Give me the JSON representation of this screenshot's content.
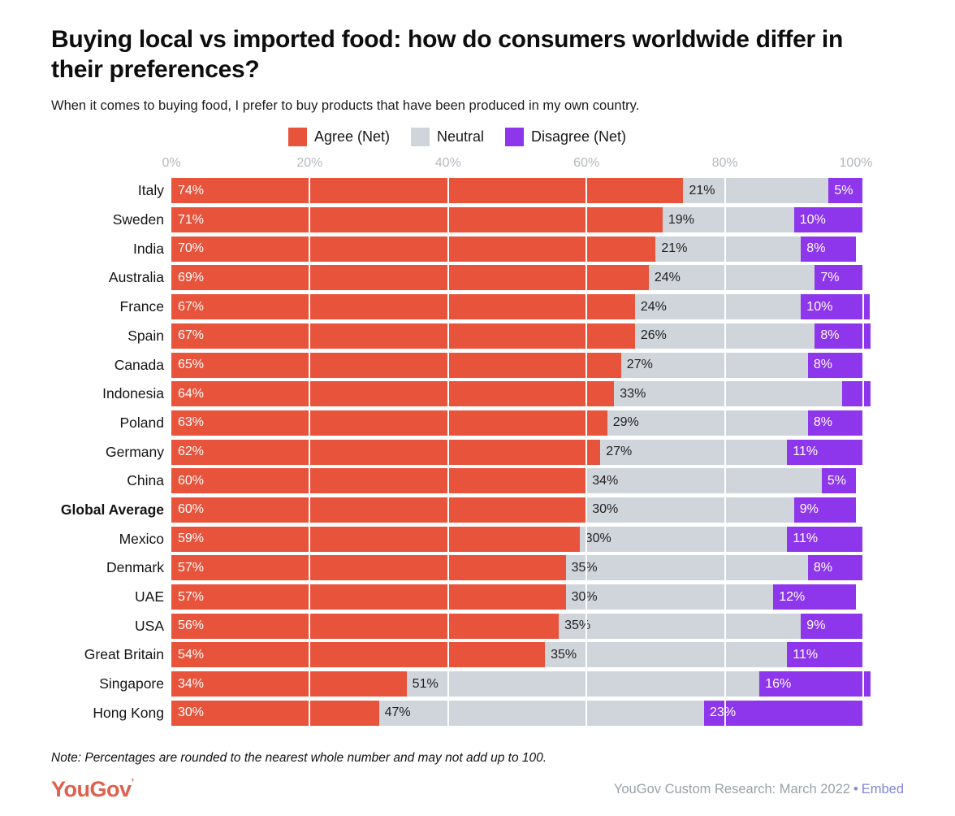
{
  "header": {
    "title": "Buying local vs imported food: how do consumers worldwide differ in their preferences?",
    "subtitle": "When it comes to buying food, I prefer to buy products that have been produced in my own country."
  },
  "chart_data": {
    "type": "bar",
    "orientation": "horizontal",
    "stacked": true,
    "title": "Buying local vs imported food: how do consumers worldwide differ in their preferences?",
    "subtitle": "When it comes to buying food, I prefer to buy products that have been produced in my own country.",
    "legend_position": "top-center",
    "grid": true,
    "x_axis": {
      "ticks": [
        "0%",
        "20%",
        "40%",
        "60%",
        "80%",
        "100%"
      ],
      "tick_values": [
        0,
        20,
        40,
        60,
        80,
        100
      ],
      "range": [
        0,
        100
      ]
    },
    "legend": [
      {
        "label": "Agree (Net)",
        "color": "#e7533b"
      },
      {
        "label": "Neutral",
        "color": "#d0d5db"
      },
      {
        "label": "Disagree (Net)",
        "color": "#8d36eb"
      }
    ],
    "categories": [
      "Italy",
      "Sweden",
      "India",
      "Australia",
      "France",
      "Spain",
      "Canada",
      "Indonesia",
      "Poland",
      "Germany",
      "China",
      "Global Average",
      "Mexico",
      "Denmark",
      "UAE",
      "USA",
      "Great Britain",
      "Singapore",
      "Hong Kong"
    ],
    "series": [
      {
        "name": "Agree (Net)",
        "values": [
          74,
          71,
          70,
          69,
          67,
          67,
          65,
          64,
          63,
          62,
          60,
          60,
          59,
          57,
          57,
          56,
          54,
          34,
          30
        ]
      },
      {
        "name": "Neutral",
        "values": [
          21,
          19,
          21,
          24,
          24,
          26,
          27,
          33,
          29,
          27,
          34,
          30,
          30,
          35,
          30,
          35,
          35,
          51,
          47
        ]
      },
      {
        "name": "Disagree (Net)",
        "values": [
          5,
          10,
          8,
          7,
          10,
          8,
          8,
          4,
          8,
          11,
          5,
          9,
          11,
          8,
          12,
          9,
          11,
          16,
          23
        ]
      }
    ],
    "rows": [
      {
        "name": "Italy",
        "bold": false,
        "agree": 74,
        "neutral": 21,
        "disagree": 5,
        "labels": [
          "74%",
          "21%",
          "5%"
        ]
      },
      {
        "name": "Sweden",
        "bold": false,
        "agree": 71,
        "neutral": 19,
        "disagree": 10,
        "labels": [
          "71%",
          "19%",
          "10%"
        ]
      },
      {
        "name": "India",
        "bold": false,
        "agree": 70,
        "neutral": 21,
        "disagree": 8,
        "labels": [
          "70%",
          "21%",
          "8%"
        ]
      },
      {
        "name": "Australia",
        "bold": false,
        "agree": 69,
        "neutral": 24,
        "disagree": 7,
        "labels": [
          "69%",
          "24%",
          "7%"
        ]
      },
      {
        "name": "France",
        "bold": false,
        "agree": 67,
        "neutral": 24,
        "disagree": 10,
        "labels": [
          "67%",
          "24%",
          "10%"
        ]
      },
      {
        "name": "Spain",
        "bold": false,
        "agree": 67,
        "neutral": 26,
        "disagree": 8,
        "labels": [
          "67%",
          "26%",
          "8%"
        ]
      },
      {
        "name": "Canada",
        "bold": false,
        "agree": 65,
        "neutral": 27,
        "disagree": 8,
        "labels": [
          "65%",
          "27%",
          "8%"
        ]
      },
      {
        "name": "Indonesia",
        "bold": false,
        "agree": 64,
        "neutral": 33,
        "disagree": 4,
        "labels": [
          "64%",
          "33%",
          ""
        ]
      },
      {
        "name": "Poland",
        "bold": false,
        "agree": 63,
        "neutral": 29,
        "disagree": 8,
        "labels": [
          "63%",
          "29%",
          "8%"
        ]
      },
      {
        "name": "Germany",
        "bold": false,
        "agree": 62,
        "neutral": 27,
        "disagree": 11,
        "labels": [
          "62%",
          "27%",
          "11%"
        ]
      },
      {
        "name": "China",
        "bold": false,
        "agree": 60,
        "neutral": 34,
        "disagree": 5,
        "labels": [
          "60%",
          "34%",
          "5%"
        ]
      },
      {
        "name": "Global Average",
        "bold": true,
        "agree": 60,
        "neutral": 30,
        "disagree": 9,
        "labels": [
          "60%",
          "30%",
          "9%"
        ]
      },
      {
        "name": "Mexico",
        "bold": false,
        "agree": 59,
        "neutral": 30,
        "disagree": 11,
        "labels": [
          "59%",
          "30%",
          "11%"
        ]
      },
      {
        "name": "Denmark",
        "bold": false,
        "agree": 57,
        "neutral": 35,
        "disagree": 8,
        "labels": [
          "57%",
          "35%",
          "8%"
        ]
      },
      {
        "name": "UAE",
        "bold": false,
        "agree": 57,
        "neutral": 30,
        "disagree": 12,
        "labels": [
          "57%",
          "30%",
          "12%"
        ]
      },
      {
        "name": "USA",
        "bold": false,
        "agree": 56,
        "neutral": 35,
        "disagree": 9,
        "labels": [
          "56%",
          "35%",
          "9%"
        ]
      },
      {
        "name": "Great Britain",
        "bold": false,
        "agree": 54,
        "neutral": 35,
        "disagree": 11,
        "labels": [
          "54%",
          "35%",
          "11%"
        ]
      },
      {
        "name": "Singapore",
        "bold": false,
        "agree": 34,
        "neutral": 51,
        "disagree": 16,
        "labels": [
          "34%",
          "51%",
          "16%"
        ]
      },
      {
        "name": "Hong Kong",
        "bold": false,
        "agree": 30,
        "neutral": 47,
        "disagree": 23,
        "labels": [
          "30%",
          "47%",
          "23%"
        ]
      }
    ]
  },
  "footer": {
    "note": "Note: Percentages are rounded to the nearest whole number and may not add up to 100.",
    "logo_text": "YouGov",
    "source": "YouGov Custom Research: March 2022",
    "separator": "•",
    "embed_label": "Embed"
  },
  "colors": {
    "agree": "#e7533b",
    "neutral": "#d0d5db",
    "disagree": "#8d36eb",
    "axis_label": "#b4b9bd",
    "logo_red": "#df604e",
    "embed_link": "#8186d8",
    "source_text": "#9aa1a8"
  }
}
